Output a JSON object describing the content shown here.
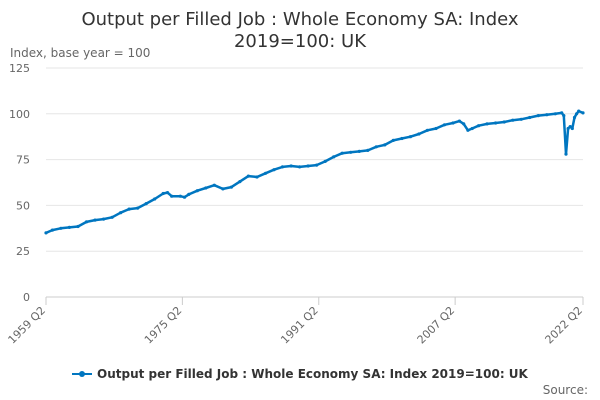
{
  "chart_data": {
    "type": "line",
    "title_line1": "Output per Filled Job : Whole Economy SA: Index",
    "title_line2": "2019=100: UK",
    "ylabel": "Index, base year = 100",
    "ylim": [
      0,
      125
    ],
    "yticks": [
      0,
      25,
      50,
      75,
      100,
      125
    ],
    "xlim": [
      "1959 Q2",
      "2022 Q2"
    ],
    "xticks": [
      "1959 Q2",
      "1975 Q2",
      "1991 Q2",
      "2007 Q2",
      "2022 Q2"
    ],
    "grid": "horizontal",
    "legend_position": "bottom",
    "series": [
      {
        "name": "Output per Filled Job : Whole Economy SA: Index 2019=100: UK",
        "color": "#0076c0",
        "points": [
          [
            "1959 Q2",
            35
          ],
          [
            "1960 Q1",
            36.5
          ],
          [
            "1961 Q1",
            37.5
          ],
          [
            "1962 Q1",
            38
          ],
          [
            "1963 Q1",
            38.5
          ],
          [
            "1964 Q1",
            41
          ],
          [
            "1965 Q1",
            42
          ],
          [
            "1966 Q1",
            42.5
          ],
          [
            "1967 Q1",
            43.5
          ],
          [
            "1968 Q1",
            46
          ],
          [
            "1969 Q1",
            48
          ],
          [
            "1970 Q1",
            48.5
          ],
          [
            "1971 Q1",
            51
          ],
          [
            "1972 Q1",
            53.5
          ],
          [
            "1973 Q1",
            56.5
          ],
          [
            "1973 Q3",
            57
          ],
          [
            "1974 Q1",
            55
          ],
          [
            "1975 Q1",
            55
          ],
          [
            "1975 Q3",
            54.5
          ],
          [
            "1976 Q1",
            56
          ],
          [
            "1977 Q1",
            58
          ],
          [
            "1978 Q1",
            59.5
          ],
          [
            "1979 Q1",
            61
          ],
          [
            "1980 Q1",
            59
          ],
          [
            "1981 Q1",
            60
          ],
          [
            "1982 Q1",
            63
          ],
          [
            "1983 Q1",
            66
          ],
          [
            "1984 Q1",
            65.5
          ],
          [
            "1985 Q1",
            67.5
          ],
          [
            "1986 Q1",
            69.5
          ],
          [
            "1987 Q1",
            71
          ],
          [
            "1988 Q1",
            71.5
          ],
          [
            "1989 Q1",
            71
          ],
          [
            "1990 Q1",
            71.5
          ],
          [
            "1991 Q1",
            72
          ],
          [
            "1992 Q1",
            74
          ],
          [
            "1993 Q1",
            76.5
          ],
          [
            "1994 Q1",
            78.5
          ],
          [
            "1995 Q1",
            79
          ],
          [
            "1996 Q1",
            79.5
          ],
          [
            "1997 Q1",
            80
          ],
          [
            "1998 Q1",
            82
          ],
          [
            "1999 Q1",
            83
          ],
          [
            "2000 Q1",
            85.5
          ],
          [
            "2001 Q1",
            86.5
          ],
          [
            "2002 Q1",
            87.5
          ],
          [
            "2003 Q1",
            89
          ],
          [
            "2004 Q1",
            91
          ],
          [
            "2005 Q1",
            92
          ],
          [
            "2006 Q1",
            94
          ],
          [
            "2007 Q1",
            95
          ],
          [
            "2007 Q4",
            96
          ],
          [
            "2008 Q2",
            94.5
          ],
          [
            "2008 Q4",
            91
          ],
          [
            "2009 Q2",
            92
          ],
          [
            "2010 Q1",
            93.5
          ],
          [
            "2011 Q1",
            94.5
          ],
          [
            "2012 Q1",
            95
          ],
          [
            "2013 Q1",
            95.5
          ],
          [
            "2014 Q1",
            96.5
          ],
          [
            "2015 Q1",
            97
          ],
          [
            "2016 Q1",
            98
          ],
          [
            "2017 Q1",
            99
          ],
          [
            "2018 Q1",
            99.5
          ],
          [
            "2019 Q1",
            100
          ],
          [
            "2019 Q4",
            100.5
          ],
          [
            "2020 Q1",
            99
          ],
          [
            "2020 Q2",
            78
          ],
          [
            "2020 Q3",
            92
          ],
          [
            "2020 Q4",
            93
          ],
          [
            "2021 Q1",
            92
          ],
          [
            "2021 Q2",
            98
          ],
          [
            "2021 Q3",
            100
          ],
          [
            "2021 Q4",
            101.5
          ],
          [
            "2022 Q2",
            100.5
          ]
        ]
      }
    ]
  },
  "footer": {
    "source_label": "Source:"
  }
}
